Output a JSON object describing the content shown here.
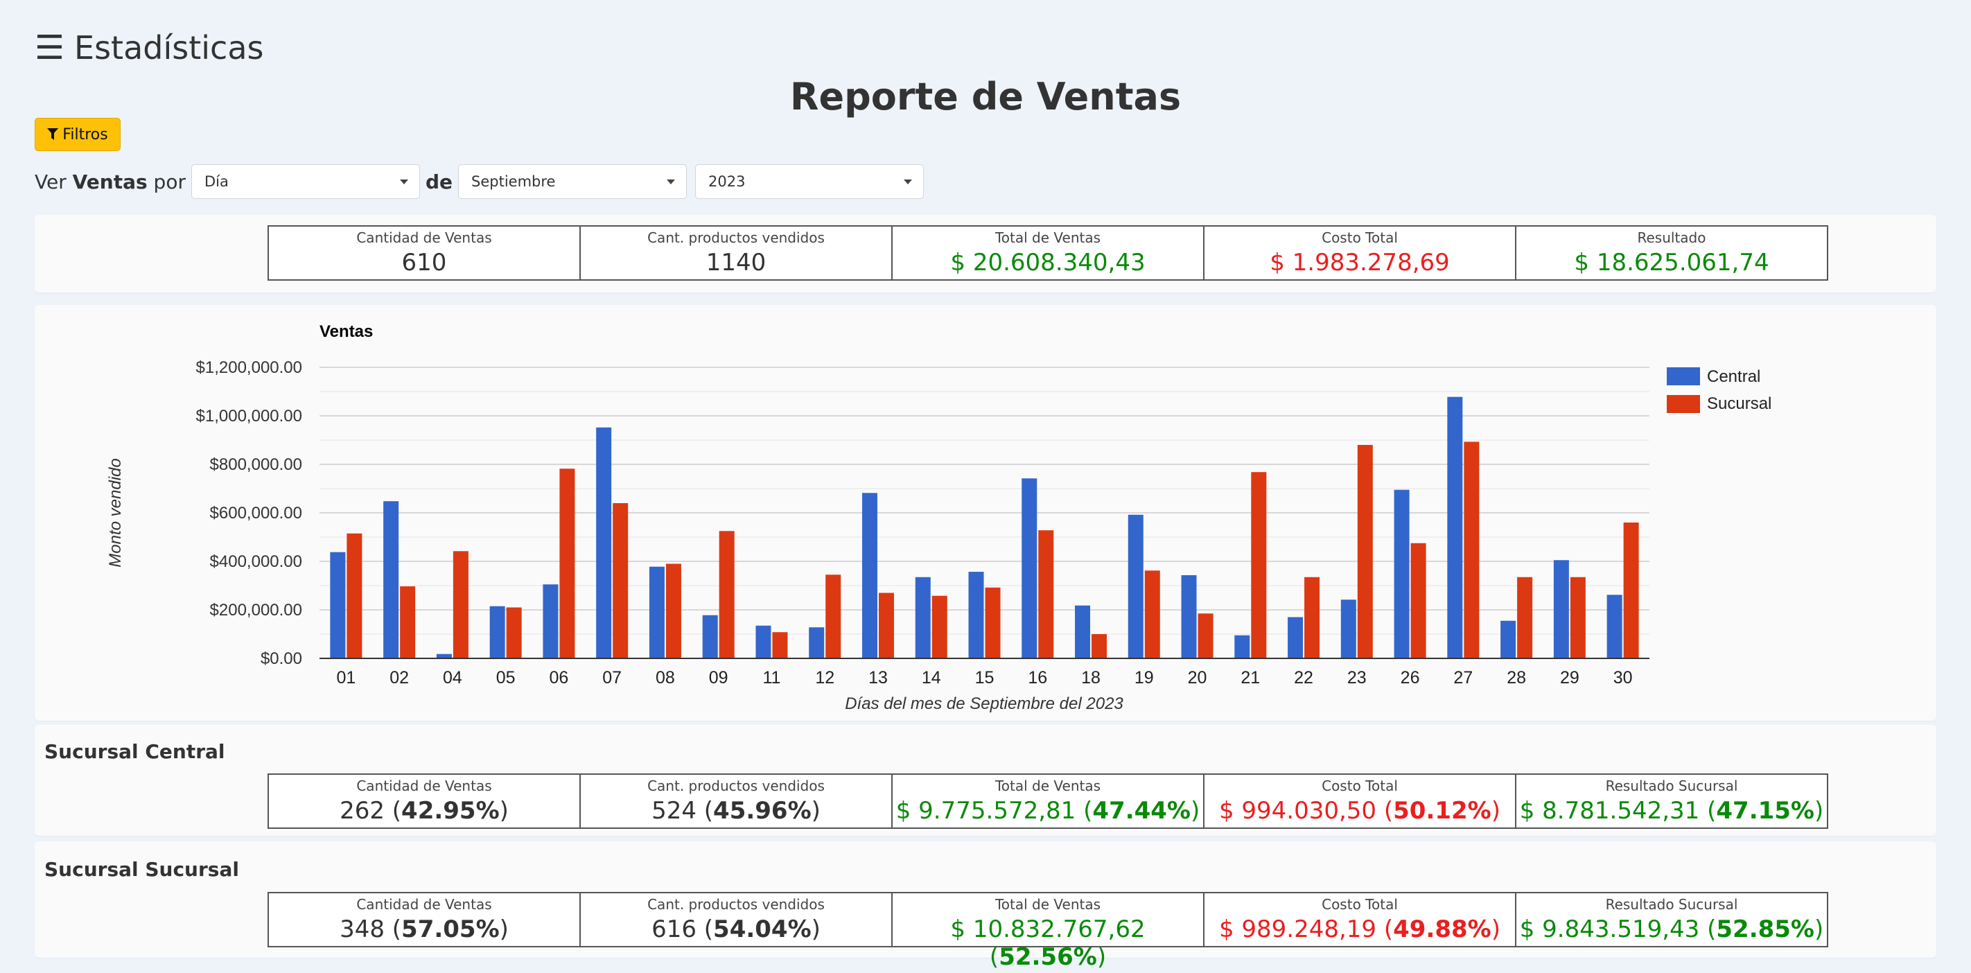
{
  "header": {
    "menu_icon": "hamburger-icon",
    "title": "Estadísticas"
  },
  "report_title": "Reporte de Ventas",
  "filters_button": {
    "icon": "filter-icon",
    "label": "Filtros"
  },
  "ver_ventas": {
    "prefix_a": "Ver ",
    "prefix_b": "Ventas",
    "prefix_c": " por",
    "connector": "de",
    "period_select": "Día",
    "month_select": "Septiembre",
    "year_select": "2023"
  },
  "summary": {
    "cells": [
      {
        "label": "Cantidad de Ventas",
        "value": "610"
      },
      {
        "label": "Cant. productos vendidos",
        "value": "1140"
      },
      {
        "label": "Total de Ventas",
        "value": "$ 20.608.340,43"
      },
      {
        "label": "Costo Total",
        "value": "$ 1.983.278,69"
      },
      {
        "label": "Resultado",
        "value": "$ 18.625.061,74"
      }
    ]
  },
  "central": {
    "title": "Sucursal Central",
    "cells": [
      {
        "label": "Cantidad de Ventas",
        "value": "262",
        "pct": "42.95%"
      },
      {
        "label": "Cant. productos vendidos",
        "value": "524",
        "pct": "45.96%"
      },
      {
        "label": "Total de Ventas",
        "value": "$ 9.775.572,81",
        "pct": "47.44%"
      },
      {
        "label": "Costo Total",
        "value": "$ 994.030,50",
        "pct": "50.12%"
      },
      {
        "label": "Resultado Sucursal",
        "value": "$ 8.781.542,31",
        "pct": "47.15%"
      }
    ]
  },
  "sucursal": {
    "title": "Sucursal Sucursal",
    "cells": [
      {
        "label": "Cantidad de Ventas",
        "value": "348",
        "pct": "57.05%"
      },
      {
        "label": "Cant. productos vendidos",
        "value": "616",
        "pct": "54.04%"
      },
      {
        "label": "Total de Ventas",
        "value": "$ 10.832.767,62",
        "pct": "52.56%"
      },
      {
        "label": "Costo Total",
        "value": "$ 989.248,19",
        "pct": "49.88%"
      },
      {
        "label": "Resultado Sucursal",
        "value": "$ 9.843.519,43",
        "pct": "52.85%"
      }
    ]
  },
  "chart_data": {
    "type": "bar",
    "title": "Ventas",
    "xlabel": "Días del mes de Septiembre del 2023",
    "ylabel": "Monto vendido",
    "ylim": [
      0,
      1200000
    ],
    "yticks": [
      "$0.00",
      "$200,000.00",
      "$400,000.00",
      "$600,000.00",
      "$800,000.00",
      "$1,000,000.00",
      "$1,200,000.00"
    ],
    "grid": true,
    "legend_position": "right",
    "categories": [
      "01",
      "02",
      "04",
      "05",
      "06",
      "07",
      "08",
      "09",
      "11",
      "12",
      "13",
      "14",
      "15",
      "16",
      "18",
      "19",
      "20",
      "21",
      "22",
      "23",
      "26",
      "27",
      "28",
      "29",
      "30"
    ],
    "series": [
      {
        "name": "Central",
        "color": "#3366cc",
        "values": [
          438000,
          648000,
          18000,
          215000,
          305000,
          952000,
          378000,
          178000,
          135000,
          128000,
          682000,
          335000,
          357000,
          742000,
          218000,
          592000,
          343000,
          95000,
          170000,
          242000,
          695000,
          1078000,
          155000,
          405000,
          262000
        ]
      },
      {
        "name": "Sucursal",
        "color": "#dc3912",
        "values": [
          515000,
          297000,
          442000,
          210000,
          782000,
          640000,
          390000,
          525000,
          108000,
          345000,
          270000,
          258000,
          292000,
          528000,
          100000,
          362000,
          185000,
          768000,
          335000,
          880000,
          475000,
          893000,
          335000,
          335000,
          560000
        ]
      }
    ]
  }
}
